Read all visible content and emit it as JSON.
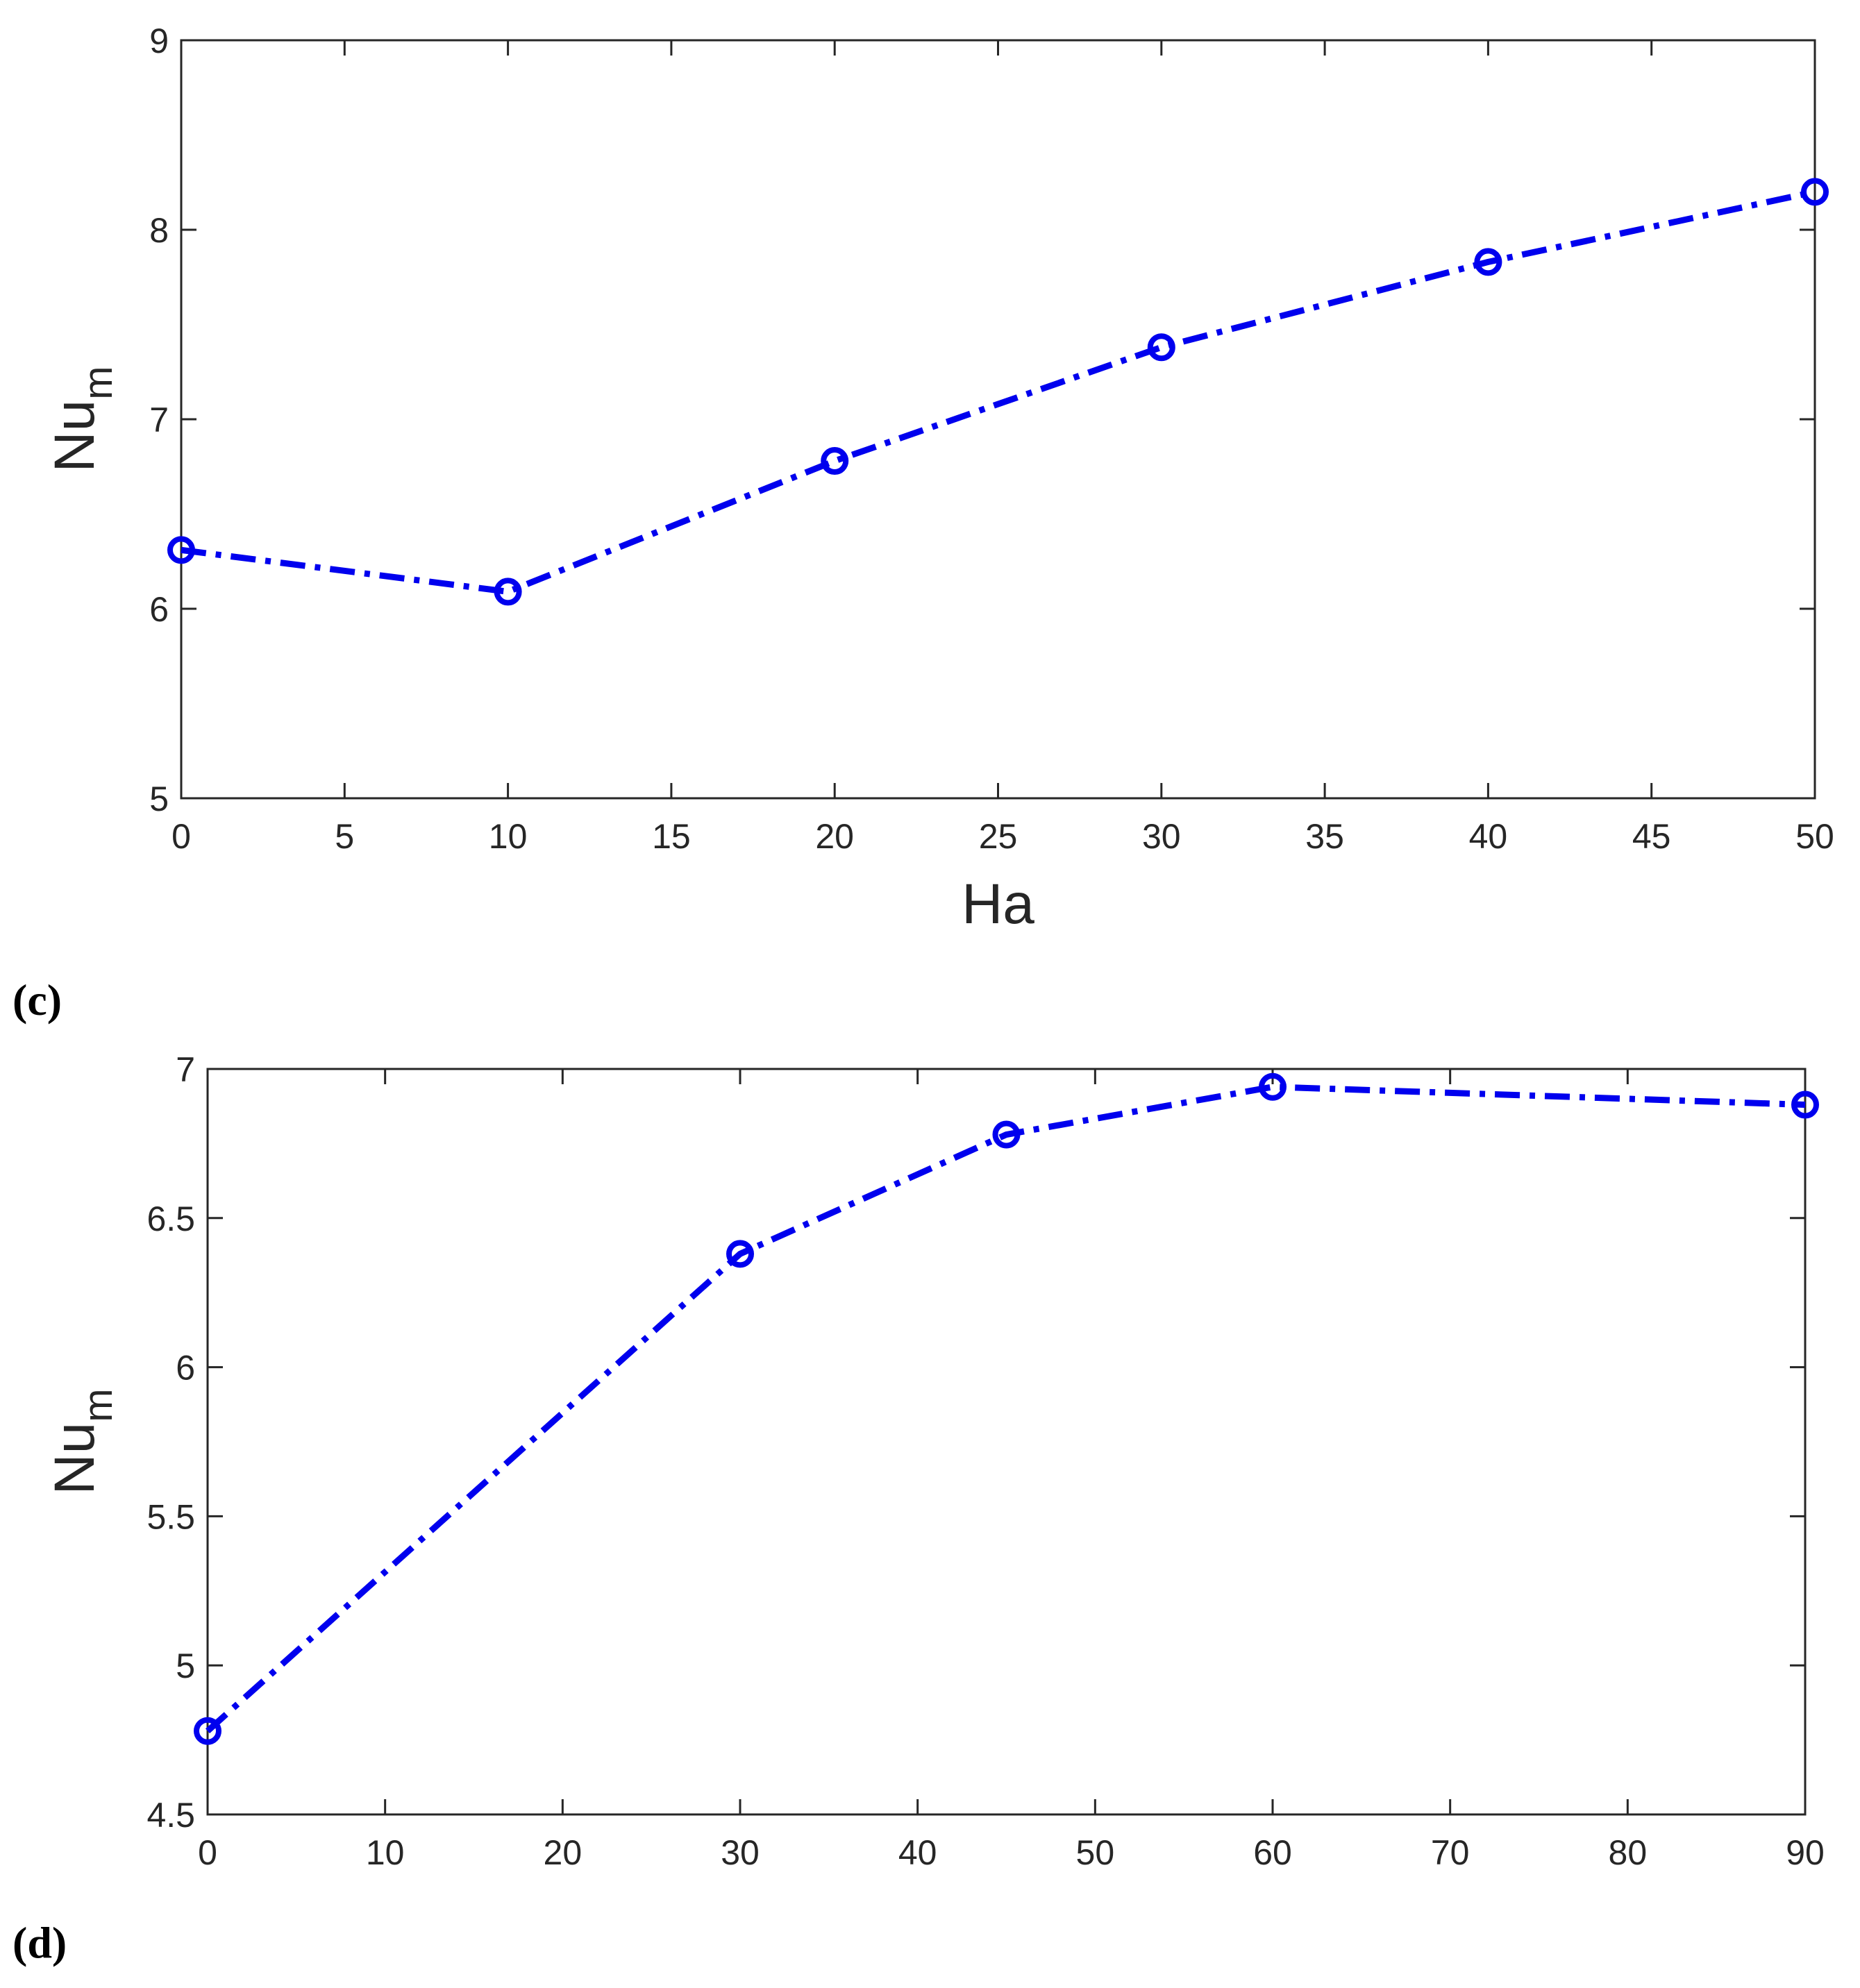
{
  "colors": {
    "series": "#0000ee",
    "axes": "#262626",
    "background": "#ffffff"
  },
  "chart_data": [
    {
      "type": "line",
      "panel_label": "(c)",
      "xlabel": "Ha",
      "ylabel": "Nu",
      "ylabel_subscript": "m",
      "xlim": [
        0,
        50
      ],
      "ylim": [
        5,
        9
      ],
      "xticks": [
        0,
        5,
        10,
        15,
        20,
        25,
        30,
        35,
        40,
        45,
        50
      ],
      "yticks": [
        5,
        6,
        7,
        8,
        9
      ],
      "grid": false,
      "line_style": "dash-dot",
      "marker": "circle",
      "series": [
        {
          "x": [
            0,
            10,
            20,
            30,
            40,
            50
          ],
          "values": [
            6.31,
            6.09,
            6.78,
            7.38,
            7.83,
            8.2
          ]
        }
      ]
    },
    {
      "type": "line",
      "panel_label": "(d)",
      "xlabel": "",
      "ylabel": "Nu",
      "ylabel_subscript": "m",
      "xlim": [
        0,
        90
      ],
      "ylim": [
        4.5,
        7
      ],
      "xticks": [
        0,
        10,
        20,
        30,
        40,
        50,
        60,
        70,
        80,
        90
      ],
      "yticks": [
        4.5,
        5,
        5.5,
        6,
        6.5,
        7
      ],
      "grid": false,
      "line_style": "dash-dot",
      "marker": "circle",
      "series": [
        {
          "x": [
            0,
            30,
            45,
            60,
            90
          ],
          "values": [
            4.78,
            6.38,
            6.78,
            6.94,
            6.88
          ]
        }
      ]
    }
  ]
}
